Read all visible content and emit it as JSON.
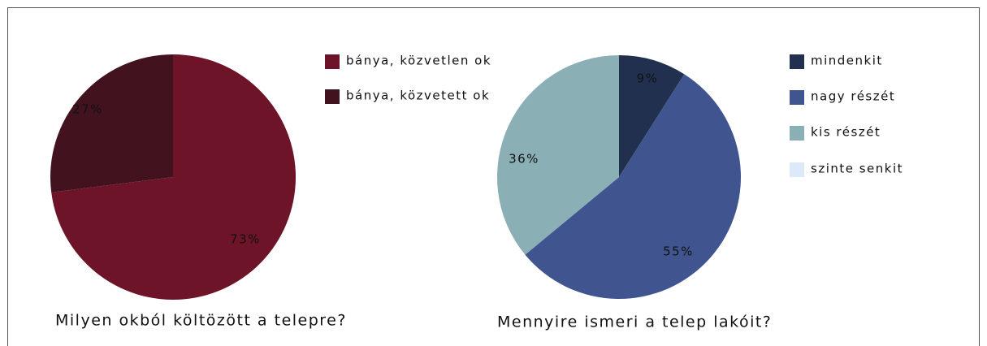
{
  "chart_data": [
    {
      "type": "pie",
      "title": "Milyen okból költözött a telepre?",
      "categories": [
        "bánya, közvetlen ok",
        "bánya, közvetett ok"
      ],
      "values": [
        73,
        27
      ],
      "value_labels": [
        "73%",
        "27%"
      ],
      "colors": [
        "#6e1428",
        "#42121f"
      ]
    },
    {
      "type": "pie",
      "title": "Mennyire ismeri a telep lakóit?",
      "categories": [
        "mindenkit",
        "nagy részét",
        "kis részét",
        "szinte senkit"
      ],
      "values": [
        9,
        55,
        36,
        0
      ],
      "value_labels": [
        "9%",
        "55%",
        "36%",
        null
      ],
      "colors": [
        "#22304f",
        "#40558f",
        "#8aafb5",
        "#dce9f8"
      ]
    }
  ]
}
